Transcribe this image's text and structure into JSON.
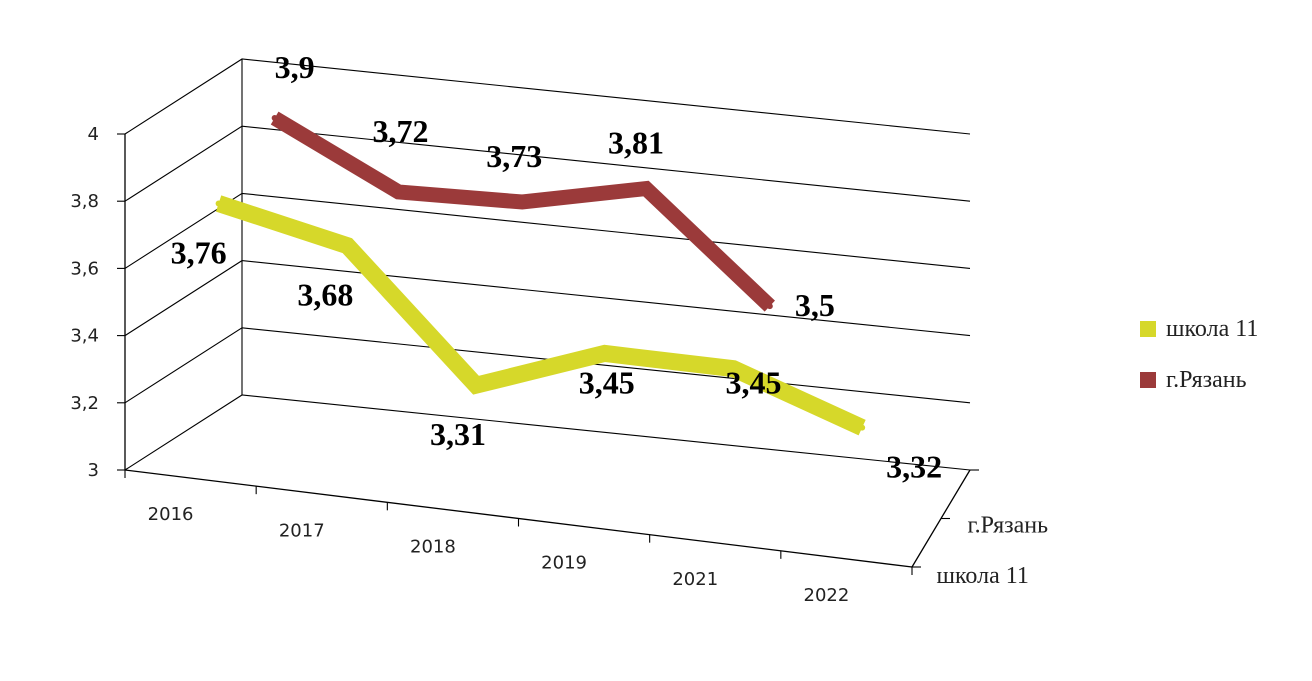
{
  "chart_data": {
    "type": "line",
    "style": "3d-line",
    "categories": [
      "2016",
      "2017",
      "2018",
      "2019",
      "2021",
      "2022"
    ],
    "ylim": [
      3,
      4
    ],
    "yticks": [
      "3",
      "3,2",
      "3,4",
      "3,6",
      "3,8",
      "4"
    ],
    "depth_labels": [
      "г.Рязань",
      "школа 11"
    ],
    "grid": true,
    "legend_position": "right",
    "series": [
      {
        "name": "школа 11",
        "color": "#d6d82a",
        "values": [
          3.76,
          3.68,
          3.31,
          3.45,
          3.45,
          3.32
        ],
        "labels": [
          "3,76",
          "3,68",
          "3,31",
          "3,45",
          "3,45",
          "3,32"
        ]
      },
      {
        "name": "г.Рязань",
        "color": "#9b3a3a",
        "values": [
          3.9,
          3.72,
          3.73,
          3.81,
          3.5,
          null
        ],
        "labels": [
          "3,9",
          "3,72",
          "3,73",
          "3,81",
          "3,5",
          null
        ]
      }
    ]
  }
}
